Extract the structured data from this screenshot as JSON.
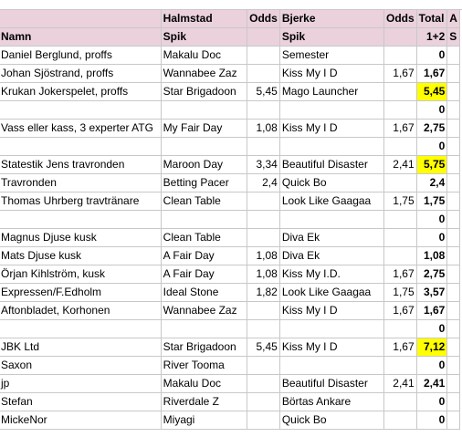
{
  "header": {
    "row1": [
      "",
      "Halmstad",
      "Odds",
      "Bjerke",
      "Odds",
      "Total",
      "A"
    ],
    "row2": [
      "Namn",
      "Spik",
      "",
      "Spik",
      "",
      "1+2",
      "S"
    ]
  },
  "rows": [
    {
      "name": "Daniel Berglund, proffs",
      "h": "Makalu Doc",
      "ho": "",
      "b": "Semester",
      "bo": "",
      "t": "0",
      "hl": false
    },
    {
      "name": "Johan Sjöstrand, proffs",
      "h": "Wannabee Zaz",
      "ho": "",
      "b": "Kiss My I D",
      "bo": "1,67",
      "t": "1,67",
      "hl": false
    },
    {
      "name": "Krukan Jokerspelet, proffs",
      "h": "Star Brigadoon",
      "ho": "5,45",
      "b": "Mago Launcher",
      "bo": "",
      "t": "5,45",
      "hl": true
    },
    {
      "name": "",
      "h": "",
      "ho": "",
      "b": "",
      "bo": "",
      "t": "0",
      "hl": false
    },
    {
      "name": "Vass eller kass, 3 experter ATG",
      "h": "My Fair Day",
      "ho": "1,08",
      "b": "Kiss My I D",
      "bo": "1,67",
      "t": "2,75",
      "hl": false
    },
    {
      "name": "",
      "h": "",
      "ho": "",
      "b": "",
      "bo": "",
      "t": "0",
      "hl": false
    },
    {
      "name": "Statestik Jens travronden",
      "h": "Maroon Day",
      "ho": "3,34",
      "b": "Beautiful Disaster",
      "bo": "2,41",
      "t": "5,75",
      "hl": true
    },
    {
      "name": "Travronden",
      "h": "Betting Pacer",
      "ho": "2,4",
      "b": "Quick Bo",
      "bo": "",
      "t": "2,4",
      "hl": false
    },
    {
      "name": "Thomas Uhrberg travtränare",
      "h": "Clean Table",
      "ho": "",
      "b": "Look Like Gaagaa",
      "bo": "1,75",
      "t": "1,75",
      "hl": false
    },
    {
      "name": "",
      "h": "",
      "ho": "",
      "b": "",
      "bo": "",
      "t": "0",
      "hl": false
    },
    {
      "name": "Magnus Djuse kusk",
      "h": "Clean Table",
      "ho": "",
      "b": "Diva Ek",
      "bo": "",
      "t": "0",
      "hl": false
    },
    {
      "name": "Mats Djuse kusk",
      "h": " A Fair Day",
      "ho": "1,08",
      "b": "Diva Ek",
      "bo": "",
      "t": "1,08",
      "hl": false
    },
    {
      "name": "Örjan Kihlström, kusk",
      "h": " A Fair Day",
      "ho": "1,08",
      "b": "Kiss My I.D.",
      "bo": "1,67",
      "t": "2,75",
      "hl": false
    },
    {
      "name": "Expressen/F.Edholm",
      "h": "Ideal Stone",
      "ho": "1,82",
      "b": "Look Like Gaagaa",
      "bo": "1,75",
      "t": "3,57",
      "hl": false
    },
    {
      "name": "Aftonbladet, Korhonen",
      "h": "Wannabee Zaz",
      "ho": "",
      "b": "Kiss My I D",
      "bo": "1,67",
      "t": "1,67",
      "hl": false
    },
    {
      "name": "",
      "h": "",
      "ho": "",
      "b": "",
      "bo": "",
      "t": "0",
      "hl": false
    },
    {
      "name": "JBK Ltd",
      "h": "Star Brigadoon",
      "ho": "5,45",
      "b": "Kiss My I D",
      "bo": "1,67",
      "t": "7,12",
      "hl": true
    },
    {
      "name": "Saxon",
      "h": "River Tooma",
      "ho": "",
      "b": "",
      "bo": "",
      "t": "0",
      "hl": false
    },
    {
      "name": "jp",
      "h": "Makalu Doc",
      "ho": "",
      "b": "Beautiful Disaster",
      "bo": "2,41",
      "t": "2,41",
      "hl": false
    },
    {
      "name": "Stefan",
      "h": "Riverdale Z",
      "ho": "",
      "b": "Börtas Ankare",
      "bo": "",
      "t": "0",
      "hl": false
    },
    {
      "name": "MickeNor",
      "h": "Miyagi",
      "ho": "",
      "b": "Quick Bo",
      "bo": "",
      "t": "0",
      "hl": false
    }
  ]
}
